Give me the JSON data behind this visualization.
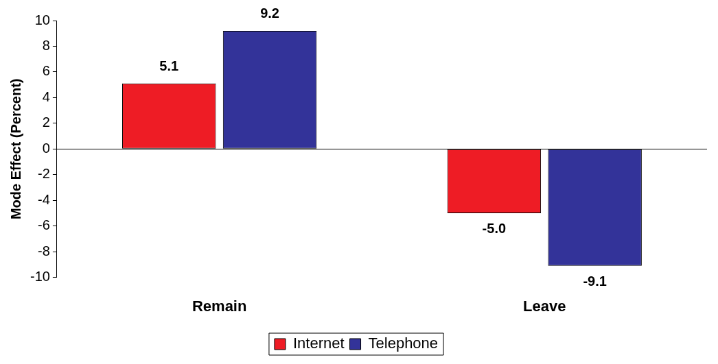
{
  "chart_data": {
    "type": "bar",
    "ylabel": "Mode Effect (Percent)",
    "categories": [
      "Remain",
      "Leave"
    ],
    "series": [
      {
        "name": "Internet",
        "color": "#ee1c25",
        "values": [
          5.1,
          -5.0
        ]
      },
      {
        "name": "Telephone",
        "color": "#333399",
        "values": [
          9.2,
          -9.1
        ]
      }
    ],
    "value_labels": [
      [
        "5.1",
        "-5.0"
      ],
      [
        "9.2",
        "-9.1"
      ]
    ],
    "ylim": [
      -10,
      10
    ],
    "yticks": [
      -10,
      -8,
      -6,
      -4,
      -2,
      0,
      2,
      4,
      6,
      8,
      10
    ],
    "ref_lines": [
      {
        "axis": "y",
        "value": 0,
        "color": "#000000"
      }
    ],
    "grid": false,
    "legend": "bottom"
  }
}
